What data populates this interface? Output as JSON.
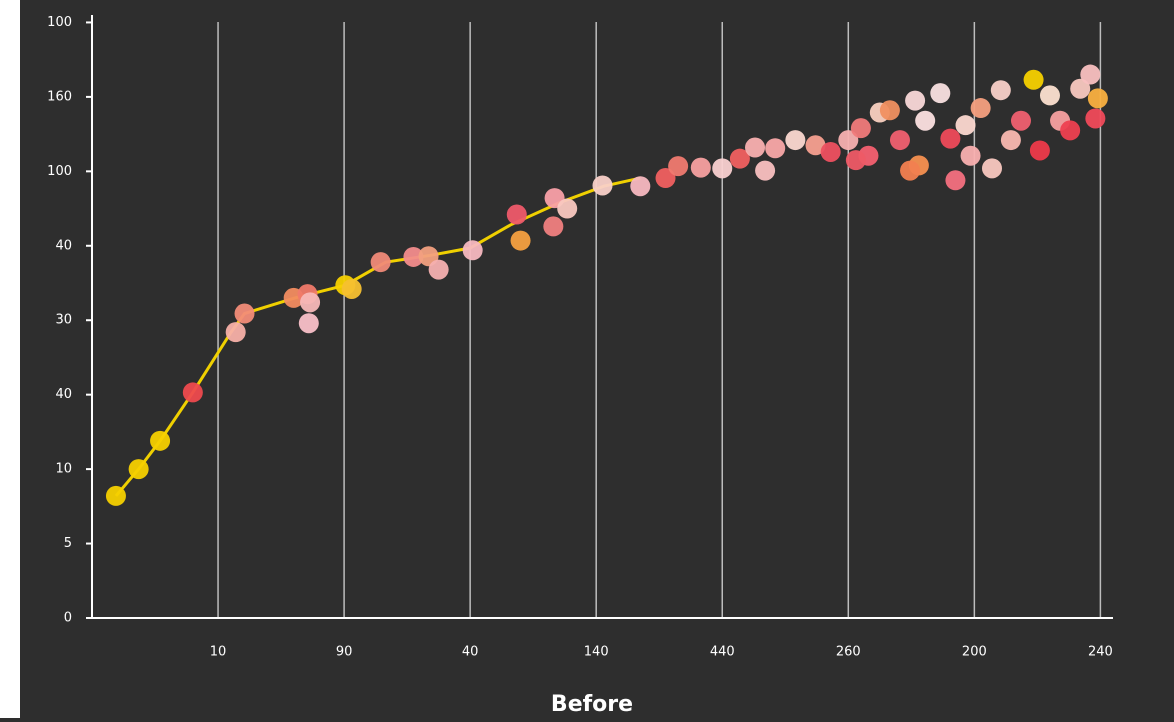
{
  "chart_data": {
    "type": "scatter",
    "x_label": "Before",
    "xlim": [
      0,
      8.1
    ],
    "ylim": [
      0,
      8.1
    ],
    "xticks": [
      {
        "value": 1,
        "label": "10"
      },
      {
        "value": 2,
        "label": "90"
      },
      {
        "value": 3,
        "label": "40"
      },
      {
        "value": 4,
        "label": "140"
      },
      {
        "value": 5,
        "label": "440"
      },
      {
        "value": 6,
        "label": "260"
      },
      {
        "value": 7,
        "label": "200"
      },
      {
        "value": 8,
        "label": "240"
      }
    ],
    "yticks": [
      0,
      {
        "value": 1,
        "label": "5"
      },
      {
        "value": 2,
        "label": "10"
      },
      {
        "value": 3,
        "label": "40"
      },
      {
        "value": 4,
        "label": "30"
      },
      {
        "value": 5,
        "label": "40"
      },
      {
        "value": 6,
        "label": "100"
      },
      {
        "value": 7,
        "label": "160"
      },
      {
        "value": 8,
        "label": "100"
      }
    ],
    "grid": true,
    "line": {
      "color": "#f0d000",
      "x": [
        0.19,
        0.37,
        0.54,
        0.8,
        1.1,
        1.21,
        1.61,
        2.01,
        2.33,
        2.68,
        3.0,
        3.32,
        3.71,
        4.06,
        4.35
      ],
      "y": [
        1.64,
        2.0,
        2.38,
        3.03,
        3.83,
        4.09,
        4.3,
        4.47,
        4.78,
        4.87,
        4.97,
        5.28,
        5.58,
        5.8,
        5.91
      ]
    },
    "x": [
      0.19,
      0.37,
      0.54,
      0.8,
      1.14,
      1.21,
      1.6,
      1.71,
      1.72,
      1.73,
      2.01,
      2.06,
      2.29,
      2.55,
      2.67,
      2.75,
      3.02,
      3.37,
      3.4,
      3.66,
      3.67,
      3.77,
      4.05,
      4.35,
      4.55,
      4.65,
      4.83,
      5.0,
      5.14,
      5.26,
      5.34,
      5.42,
      5.58,
      5.74,
      5.86,
      6.0,
      6.1,
      6.16,
      6.25,
      6.33,
      6.41,
      6.53,
      6.56,
      6.61,
      6.73,
      6.81,
      6.85,
      6.93,
      6.97,
      7.05,
      7.14,
      7.21,
      7.29,
      7.37,
      7.47,
      7.52,
      7.6,
      7.68,
      7.76,
      7.84,
      7.92,
      7.96,
      7.98,
      6.49,
      6.06
    ],
    "y": [
      1.64,
      2.0,
      2.38,
      3.03,
      3.84,
      4.09,
      4.3,
      4.35,
      3.96,
      4.24,
      4.47,
      4.42,
      4.78,
      4.85,
      4.86,
      4.68,
      4.94,
      5.42,
      5.07,
      5.26,
      5.64,
      5.5,
      5.81,
      5.8,
      5.91,
      6.07,
      6.05,
      6.04,
      6.17,
      6.32,
      6.01,
      6.31,
      6.42,
      6.35,
      6.26,
      6.42,
      6.58,
      6.21,
      6.79,
      6.82,
      6.42,
      6.95,
      6.08,
      6.68,
      7.05,
      6.44,
      5.88,
      6.62,
      6.21,
      6.85,
      6.04,
      7.09,
      6.42,
      6.68,
      7.23,
      6.28,
      7.02,
      6.68,
      6.55,
      7.11,
      7.3,
      6.71,
      6.98,
      6.01,
      6.15
    ],
    "colors": [
      "#f5d000",
      "#f5d000",
      "#f5d000",
      "#ee4a4e",
      "#f7b0a8",
      "#f28c78",
      "#f28c60",
      "#f07a6a",
      "#f9c0c8",
      "#f7b8b8",
      "#f5d000",
      "#f5c030",
      "#f08a78",
      "#f28c8c",
      "#f2a080",
      "#f5b0b0",
      "#f7b8c0",
      "#ee5a6a",
      "#f5a040",
      "#f08080",
      "#f9a0a8",
      "#f9c8c0",
      "#f9d0c8",
      "#f7b8c0",
      "#f06060",
      "#f07a70",
      "#f7a0a0",
      "#f9d0d0",
      "#f06060",
      "#f9b0b0",
      "#f9c0c0",
      "#f9a8a8",
      "#fbd8d0",
      "#f7a090",
      "#ee5060",
      "#f7b0b0",
      "#f07a7a",
      "#f46070",
      "#f9d0c0",
      "#f09060",
      "#f06070",
      "#f9d8d8",
      "#f59050",
      "#fce0e0",
      "#f9e0e0",
      "#ee4a5a",
      "#f47080",
      "#fcd8d0",
      "#f9b0b0",
      "#f5a080",
      "#f9c8c0",
      "#f9d0c8",
      "#f9b8b0",
      "#f06070",
      "#f5d000",
      "#ee3a4a",
      "#fce0d0",
      "#f7a0a0",
      "#ee4050",
      "#f8c8c0",
      "#f9c0c0",
      "#f04a5a",
      "#f9b040",
      "#f28050",
      "#ee5a66"
    ]
  }
}
